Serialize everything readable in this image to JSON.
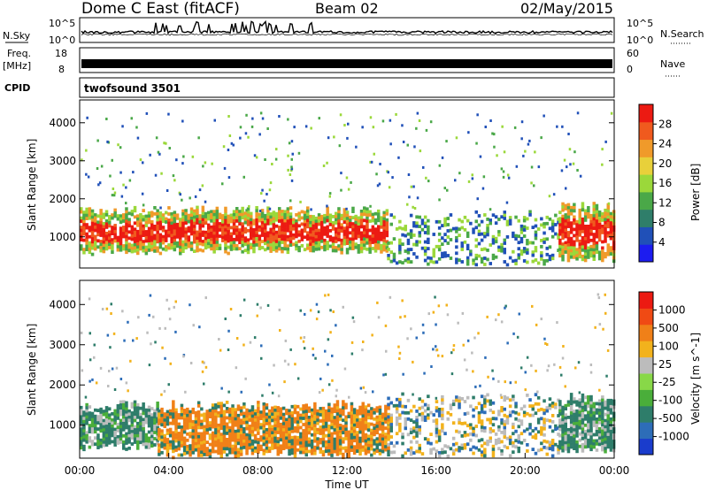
{
  "header": {
    "title": "Dome C East (fitACF)",
    "beam": "Beam 02",
    "date": "02/May/2015"
  },
  "panels": {
    "nsky": {
      "label": "N.Sky",
      "top_tick": "10^5",
      "bottom_tick": "10^0"
    },
    "nsearch": {
      "label": "N.Search",
      "top_tick": "10^5",
      "bottom_tick": "10^0"
    },
    "freq": {
      "label_line1": "Freq.",
      "label_line2": "[MHz]",
      "top_tick": "18",
      "bottom_tick": "8"
    },
    "nave": {
      "label": "Nave",
      "top_tick": "60",
      "bottom_tick": "0"
    },
    "cpid": {
      "label": "CPID",
      "program": "twofsound 3501"
    }
  },
  "chart_data": [
    {
      "type": "heatmap",
      "title": "",
      "xlabel": "",
      "ylabel": "Slant Range [km]",
      "xlim": [
        "00:00",
        "24:00"
      ],
      "ylim": [
        180,
        4600
      ],
      "y_ticks": [
        "1000",
        "2000",
        "3000",
        "4000"
      ],
      "colorbar": {
        "label": "Power [dB]",
        "range": [
          0,
          32
        ],
        "ticks": [
          "4",
          "8",
          "12",
          "16",
          "20",
          "24",
          "28"
        ],
        "colors": [
          "#1c1cf0",
          "#2050b8",
          "#2f7e6a",
          "#4aa848",
          "#9bd83a",
          "#e8d03a",
          "#f09a2a",
          "#f05a1e",
          "#ec1a12"
        ]
      },
      "bands": [
        {
          "t_start": 0.0,
          "t_end": 13.8,
          "r_low": 650,
          "r_high": 1700,
          "level": "high"
        },
        {
          "t_start": 13.8,
          "t_end": 21.5,
          "r_low": 300,
          "r_high": 1600,
          "level": "low"
        },
        {
          "t_start": 21.5,
          "t_end": 24.0,
          "r_low": 450,
          "r_high": 1800,
          "level": "high"
        }
      ]
    },
    {
      "type": "heatmap",
      "title": "",
      "xlabel": "Time UT",
      "ylabel": "Slant Range [km]",
      "xlim": [
        "00:00",
        "24:00"
      ],
      "ylim": [
        180,
        4600
      ],
      "x_ticks": [
        "00:00",
        "04:00",
        "08:00",
        "12:00",
        "16:00",
        "20:00",
        "00:00"
      ],
      "y_ticks": [
        "1000",
        "2000",
        "3000",
        "4000"
      ],
      "colorbar": {
        "label": "Velocity [m s^-1]",
        "ticks": [
          "1000",
          "500",
          "100",
          "25",
          "-25",
          "-100",
          "-500",
          "-1000"
        ],
        "colors": [
          "#1a3ccc",
          "#2d6db8",
          "#2e7d6a",
          "#4aae3a",
          "#88d848",
          "#bcbcbc",
          "#f2b21c",
          "#f08018",
          "#f04a14",
          "#ec1a12"
        ]
      },
      "bands": [
        {
          "t_start": 0.0,
          "t_end": 3.5,
          "r_low": 500,
          "r_high": 1500,
          "level": "toward"
        },
        {
          "t_start": 3.5,
          "t_end": 13.8,
          "r_low": 300,
          "r_high": 1500,
          "level": "away"
        },
        {
          "t_start": 13.8,
          "t_end": 21.5,
          "r_low": 300,
          "r_high": 1700,
          "level": "mixed"
        },
        {
          "t_start": 21.5,
          "t_end": 24.0,
          "r_low": 400,
          "r_high": 1700,
          "level": "toward"
        }
      ]
    }
  ]
}
